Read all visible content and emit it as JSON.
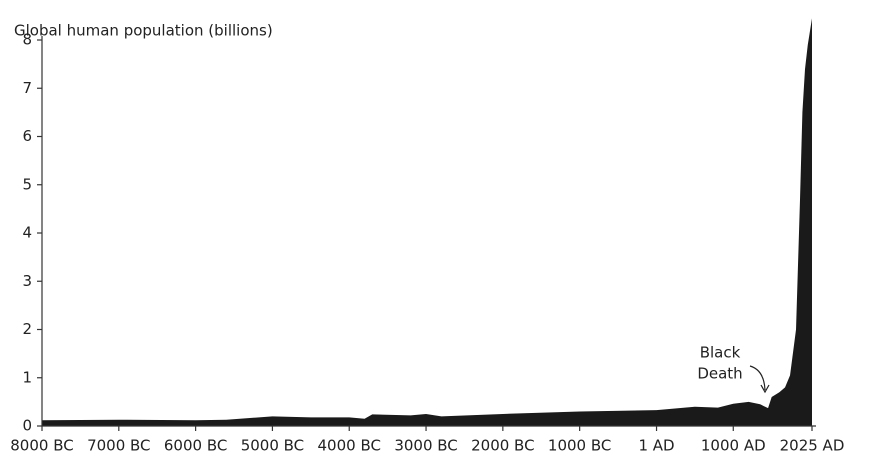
{
  "chart_data": {
    "type": "area",
    "title": "Global human population (billions)",
    "annotation": [
      "Black",
      "Death"
    ],
    "color": "#1a1a1a",
    "x": [
      -8000,
      -7000,
      -6000,
      -5600,
      -5000,
      -4500,
      -4000,
      -3800,
      -3700,
      -3200,
      -3000,
      -2800,
      -2000,
      -1000,
      1,
      500,
      800,
      1000,
      1200,
      1350,
      1453,
      1500,
      1600,
      1674,
      1739,
      1817,
      1869,
      1900,
      1934,
      1970,
      2000,
      2025
    ],
    "values": [
      0.12,
      0.13,
      0.12,
      0.13,
      0.2,
      0.18,
      0.18,
      0.15,
      0.24,
      0.22,
      0.25,
      0.2,
      0.25,
      0.3,
      0.33,
      0.4,
      0.38,
      0.46,
      0.5,
      0.45,
      0.37,
      0.6,
      0.7,
      0.8,
      1.05,
      2.0,
      4.7,
      6.5,
      7.4,
      7.9,
      8.2,
      8.45
    ],
    "xlim": [
      -8000,
      2025
    ],
    "ylim": [
      0,
      8
    ],
    "yticks": [
      0,
      1,
      2,
      3,
      4,
      5,
      6,
      7,
      8
    ],
    "xticks": [
      {
        "value": -8000,
        "label": "8000 BC"
      },
      {
        "value": -7000,
        "label": "7000 BC"
      },
      {
        "value": -6000,
        "label": "6000 BC"
      },
      {
        "value": -5000,
        "label": "5000 BC"
      },
      {
        "value": -4000,
        "label": "4000 BC"
      },
      {
        "value": -3000,
        "label": "3000 BC"
      },
      {
        "value": -2000,
        "label": "2000 BC"
      },
      {
        "value": -1000,
        "label": "1000 BC"
      },
      {
        "value": 1,
        "label": "1 AD"
      },
      {
        "value": 1000,
        "label": "1000 AD"
      },
      {
        "value": 2025,
        "label": "2025 AD"
      }
    ]
  }
}
